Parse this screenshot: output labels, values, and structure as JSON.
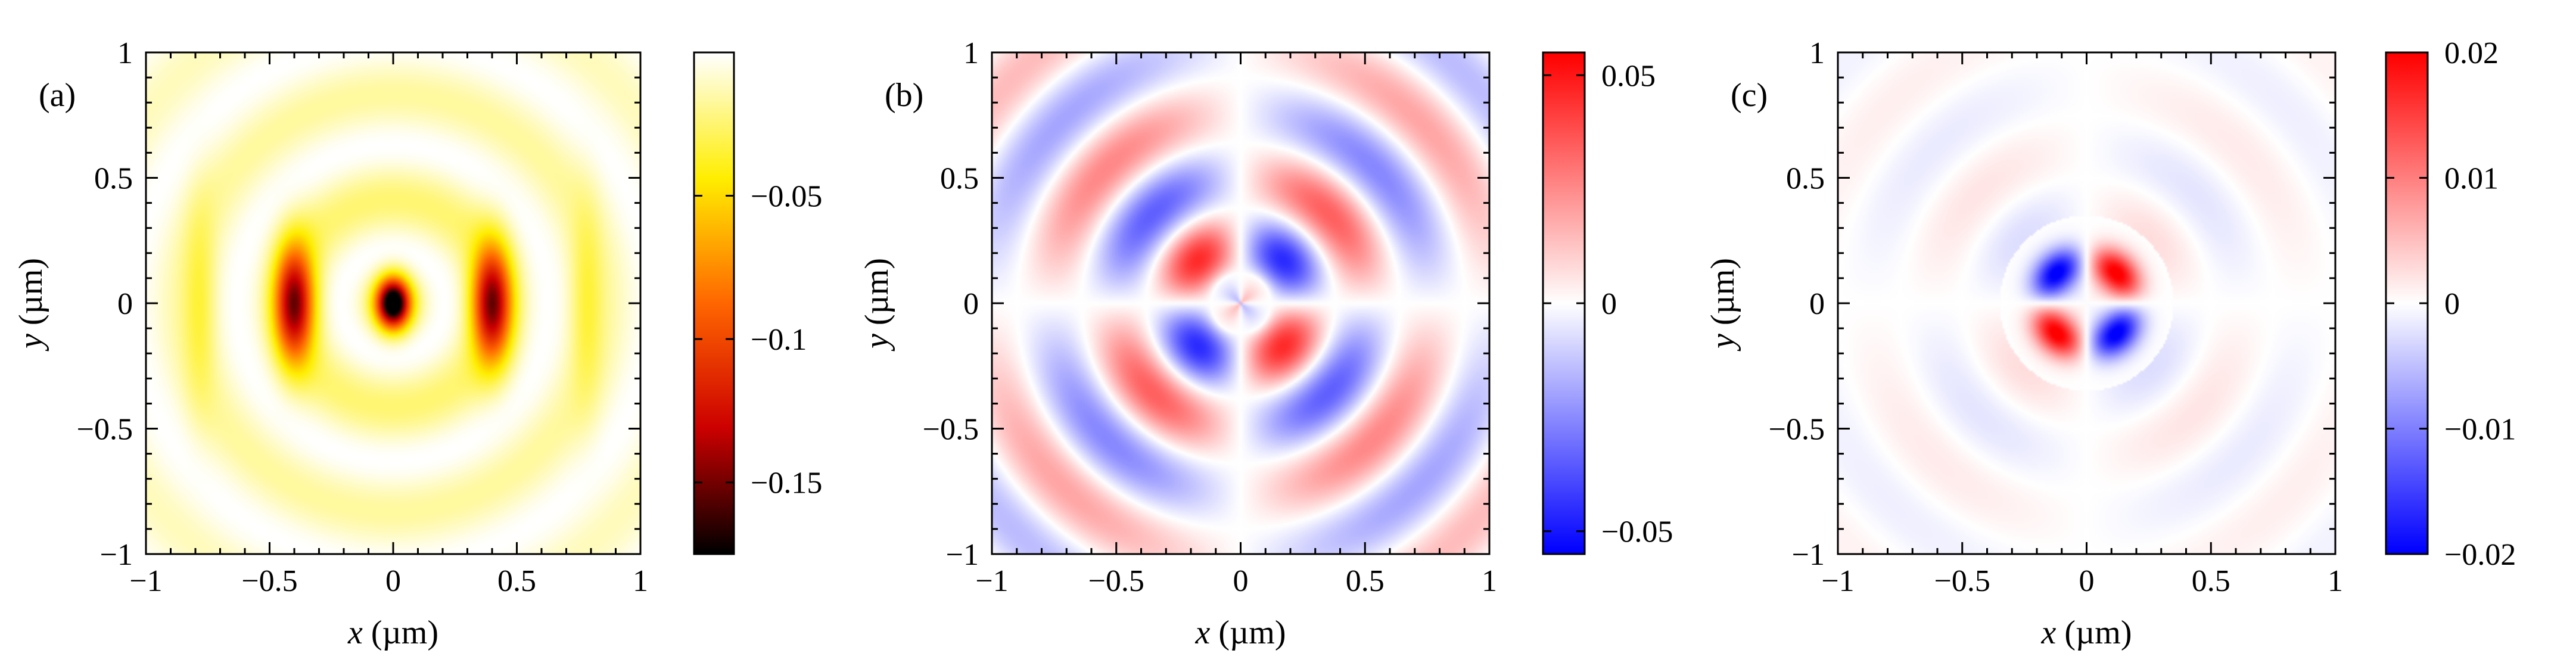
{
  "chart_data": [
    {
      "type": "heatmap",
      "panel_label": "(a)",
      "xlabel_var": "x",
      "xlabel_unit": " (µm)",
      "ylabel_var": "y",
      "ylabel_unit": " (µm)",
      "xlim": [
        -1,
        1
      ],
      "ylim": [
        -1,
        1
      ],
      "x_ticks": [
        -1,
        -0.5,
        0,
        0.5,
        1
      ],
      "x_tick_labels": [
        "−1",
        "−0.5",
        "0",
        "0.5",
        "1"
      ],
      "y_ticks": [
        -1,
        -0.5,
        0,
        0.5,
        1
      ],
      "y_tick_labels": [
        "−1",
        "−0.5",
        "0",
        "0.5",
        "1"
      ],
      "colormap": "hot",
      "color_range": [
        -0.175,
        0
      ],
      "colorbar_ticks": [
        -0.05,
        -0.1,
        -0.15
      ],
      "colorbar_tick_labels": [
        "−0.05",
        "−0.1",
        "−0.15"
      ],
      "pattern": "radial rings, strongest negative value -0.175 at the centre, lobes of about -0.13 at x = ±0.4",
      "colors": [
        "#000000",
        "#cc0000",
        "#ff6600",
        "#ffee00",
        "#ffffff"
      ]
    },
    {
      "type": "heatmap",
      "panel_label": "(b)",
      "xlabel_var": "x",
      "xlabel_unit": " (µm)",
      "ylabel_var": "y",
      "ylabel_unit": " (µm)",
      "xlim": [
        -1,
        1
      ],
      "ylim": [
        -1,
        1
      ],
      "x_ticks": [
        -1,
        -0.5,
        0,
        0.5,
        1
      ],
      "x_tick_labels": [
        "−1",
        "−0.5",
        "0",
        "0.5",
        "1"
      ],
      "y_ticks": [
        -1,
        -0.5,
        0,
        0.5,
        1
      ],
      "y_tick_labels": [
        "−1",
        "−0.5",
        "0",
        "0.5",
        "1"
      ],
      "colormap": "blue-white-red",
      "color_range": [
        -0.055,
        0.055
      ],
      "colorbar_ticks": [
        0.05,
        0,
        -0.05
      ],
      "colorbar_tick_labels": [
        "0.05",
        "0",
        "−0.05"
      ],
      "pattern": "quadrupole rings, positive in quadrants x>0,y<0 and x<0,y>0 near the centre, extremes about ±0.05",
      "colors": [
        "#0000ff",
        "#ffffff",
        "#ff0000"
      ]
    },
    {
      "type": "heatmap",
      "panel_label": "(c)",
      "xlabel_var": "x",
      "xlabel_unit": " (µm)",
      "ylabel_var": "y",
      "ylabel_unit": " (µm)",
      "xlim": [
        -1,
        1
      ],
      "ylim": [
        -1,
        1
      ],
      "x_ticks": [
        -1,
        -0.5,
        0,
        0.5,
        1
      ],
      "x_tick_labels": [
        "−1",
        "−0.5",
        "0",
        "0.5",
        "1"
      ],
      "y_ticks": [
        -1,
        -0.5,
        0,
        0.5,
        1
      ],
      "y_tick_labels": [
        "−1",
        "−0.5",
        "0",
        "0.5",
        "1"
      ],
      "colormap": "blue-white-red",
      "color_range": [
        -0.02,
        0.02
      ],
      "colorbar_ticks": [
        0.02,
        0.01,
        0,
        -0.01,
        -0.02
      ],
      "colorbar_tick_labels": [
        "0.02",
        "0.01",
        "0",
        "−0.01",
        "−0.02"
      ],
      "pattern": "compact quadrupole, positive at (0.15,0.15) and (-0.15,-0.15), negative at the other two, extremes about ±0.02",
      "colors": [
        "#0000ff",
        "#ffffff",
        "#ff0000"
      ]
    }
  ]
}
